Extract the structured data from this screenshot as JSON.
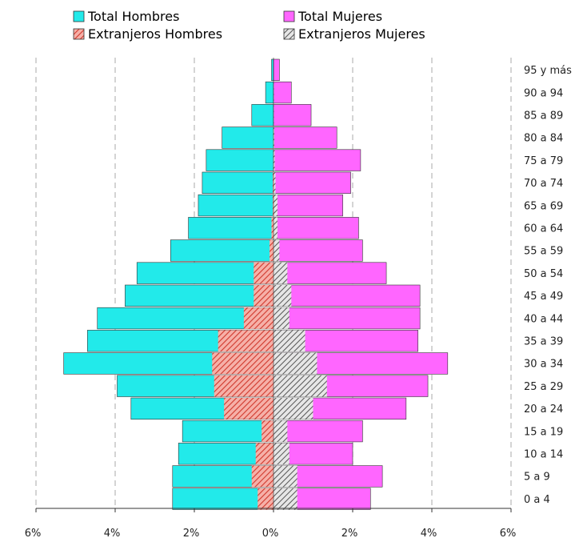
{
  "chart_data": {
    "type": "bar",
    "orientation": "horizontal",
    "layout": "population-pyramid",
    "categories": [
      "0 a 4",
      "5 a 9",
      "10 a 14",
      "15 a 19",
      "20 a 24",
      "25 a 29",
      "30 a 34",
      "35 a 39",
      "40 a 44",
      "45 a 49",
      "50 a 54",
      "55 a 59",
      "60 a 64",
      "65 a 69",
      "70 a 74",
      "75 a 79",
      "80 a 84",
      "85 a 89",
      "90 a 94",
      "95 y más"
    ],
    "series": [
      {
        "name": "Total Hombres",
        "side": "left",
        "color": "#22eaea",
        "pattern": "solid",
        "values": [
          2.55,
          2.55,
          2.4,
          2.3,
          3.6,
          3.95,
          5.3,
          4.7,
          4.45,
          3.75,
          3.45,
          2.6,
          2.15,
          1.9,
          1.8,
          1.7,
          1.3,
          0.55,
          0.2,
          0.05
        ]
      },
      {
        "name": "Total Mujeres",
        "side": "right",
        "color": "#ff66ff",
        "pattern": "solid",
        "values": [
          2.45,
          2.75,
          2.0,
          2.25,
          3.35,
          3.9,
          4.4,
          3.65,
          3.7,
          3.7,
          2.85,
          2.25,
          2.15,
          1.75,
          1.95,
          2.2,
          1.6,
          0.95,
          0.45,
          0.15
        ]
      },
      {
        "name": "Extranjeros Hombres",
        "side": "left",
        "color": "#f06a6a",
        "pattern": "hatch-red",
        "values": [
          0.4,
          0.55,
          0.45,
          0.3,
          1.25,
          1.5,
          1.55,
          1.4,
          0.75,
          0.5,
          0.5,
          0.1,
          0.05,
          0.02,
          0.02,
          0.01,
          0.01,
          0.0,
          0.0,
          0.0
        ]
      },
      {
        "name": "Extranjeros Mujeres",
        "side": "right",
        "color": "#888888",
        "pattern": "hatch-gray",
        "values": [
          0.6,
          0.6,
          0.4,
          0.35,
          1.0,
          1.35,
          1.1,
          0.8,
          0.4,
          0.45,
          0.35,
          0.15,
          0.1,
          0.1,
          0.05,
          0.03,
          0.02,
          0.01,
          0.01,
          0.0
        ]
      }
    ],
    "xticks": [
      "6%",
      "4%",
      "2%",
      "0%",
      "2%",
      "4%",
      "6%"
    ],
    "xlim": [
      -6,
      6
    ],
    "grid": "vertical-dashed",
    "legend_position": "top"
  }
}
